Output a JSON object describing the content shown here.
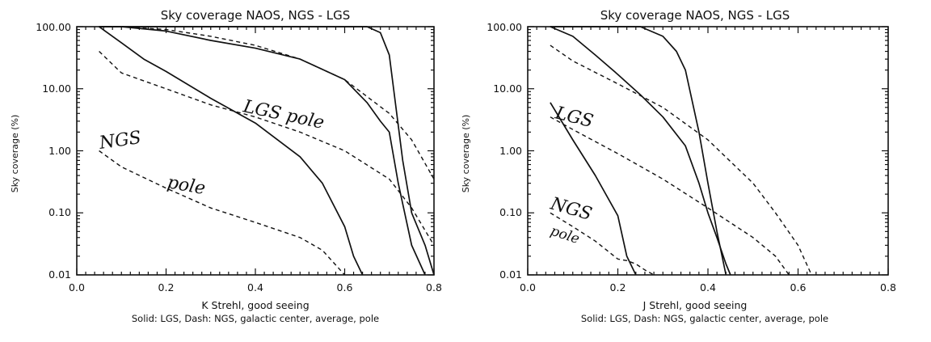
{
  "chart_data": [
    {
      "type": "line",
      "title": "Sky coverage NAOS, NGS - LGS",
      "xlabel": "K Strehl, good seeing",
      "ylabel": "Sky coverage (%)",
      "caption": "Solid: LGS, Dash: NGS, galactic center, average, pole",
      "xlim": [
        0.0,
        0.8
      ],
      "ylim": [
        0.01,
        100
      ],
      "yscale": "log",
      "xticks": [
        "0.0",
        "0.2",
        "0.4",
        "0.6",
        "0.8"
      ],
      "yticks": [
        "0.01",
        "0.10",
        "1.00",
        "10.00",
        "100.00"
      ],
      "annotations": [
        {
          "text": "LGS pole",
          "x": 0.38,
          "y": 2.0
        },
        {
          "text": "NGS",
          "x": 0.05,
          "y": 1.2
        },
        {
          "text": "pole",
          "x": 0.2,
          "y": 0.18
        }
      ],
      "series": [
        {
          "name": "LGS galactic center",
          "style": "solid",
          "x": [
            0.05,
            0.2,
            0.3,
            0.4,
            0.5,
            0.6,
            0.65,
            0.68,
            0.7,
            0.73,
            0.75,
            0.78,
            0.8
          ],
          "y": [
            100,
            100,
            100,
            100,
            100,
            100,
            100,
            80,
            35,
            0.7,
            0.1,
            0.03,
            0.01
          ]
        },
        {
          "name": "LGS average",
          "style": "solid",
          "x": [
            0.05,
            0.1,
            0.2,
            0.3,
            0.4,
            0.5,
            0.6,
            0.65,
            0.68,
            0.7,
            0.72,
            0.75,
            0.78
          ],
          "y": [
            100,
            100,
            85,
            60,
            45,
            30,
            14,
            6,
            3,
            2,
            0.3,
            0.03,
            0.01
          ]
        },
        {
          "name": "LGS pole",
          "style": "solid",
          "x": [
            0.05,
            0.1,
            0.15,
            0.2,
            0.3,
            0.4,
            0.5,
            0.55,
            0.6,
            0.62,
            0.64
          ],
          "y": [
            100,
            55,
            30,
            19,
            7,
            2.8,
            0.8,
            0.3,
            0.06,
            0.02,
            0.01
          ]
        },
        {
          "name": "NGS galactic center",
          "style": "dash",
          "x": [
            0.05,
            0.1,
            0.2,
            0.3,
            0.4,
            0.5,
            0.6,
            0.7,
            0.75,
            0.8
          ],
          "y": [
            100,
            100,
            90,
            70,
            50,
            30,
            14,
            4,
            1.5,
            0.35
          ]
        },
        {
          "name": "NGS average",
          "style": "dash",
          "x": [
            0.05,
            0.1,
            0.2,
            0.3,
            0.4,
            0.5,
            0.6,
            0.7,
            0.75,
            0.8
          ],
          "y": [
            40,
            18,
            10,
            5.5,
            3.5,
            2,
            1,
            0.35,
            0.12,
            0.03
          ]
        },
        {
          "name": "NGS pole",
          "style": "dash",
          "x": [
            0.05,
            0.1,
            0.2,
            0.3,
            0.4,
            0.5,
            0.55,
            0.6
          ],
          "y": [
            1.0,
            0.55,
            0.25,
            0.12,
            0.07,
            0.04,
            0.025,
            0.01
          ]
        }
      ]
    },
    {
      "type": "line",
      "title": "Sky coverage NAOS, NGS - LGS",
      "xlabel": "J Strehl, good seeing",
      "ylabel": "Sky coverage (%)",
      "caption": "Solid: LGS, Dash: NGS, galactic center, average, pole",
      "xlim": [
        0.0,
        0.8
      ],
      "ylim": [
        0.01,
        100
      ],
      "yscale": "log",
      "xticks": [
        "0.0",
        "0.2",
        "0.4",
        "0.6",
        "0.8"
      ],
      "yticks": [
        "0.01",
        "0.10",
        "1.00",
        "10.00",
        "100.00"
      ],
      "annotations": [
        {
          "text": "LGS",
          "x": 0.05,
          "y": 4
        },
        {
          "text": "NGS",
          "x": 0.05,
          "y": 0.08
        },
        {
          "text": "pole",
          "x": 0.05,
          "y": 0.03
        }
      ],
      "series": [
        {
          "name": "LGS galactic center",
          "style": "solid",
          "x": [
            0.05,
            0.15,
            0.2,
            0.25,
            0.3,
            0.33,
            0.35,
            0.38,
            0.4,
            0.42,
            0.44
          ],
          "y": [
            100,
            100,
            100,
            100,
            70,
            40,
            20,
            2,
            0.3,
            0.05,
            0.01
          ]
        },
        {
          "name": "LGS average",
          "style": "solid",
          "x": [
            0.05,
            0.1,
            0.15,
            0.2,
            0.25,
            0.3,
            0.35,
            0.38,
            0.4,
            0.42,
            0.44,
            0.45
          ],
          "y": [
            100,
            70,
            35,
            17,
            8,
            3.5,
            1.2,
            0.3,
            0.1,
            0.04,
            0.015,
            0.01
          ]
        },
        {
          "name": "LGS pole",
          "style": "solid",
          "x": [
            0.05,
            0.1,
            0.15,
            0.2,
            0.22,
            0.24
          ],
          "y": [
            6,
            1.5,
            0.4,
            0.09,
            0.02,
            0.01
          ]
        },
        {
          "name": "NGS galactic center",
          "style": "dash",
          "x": [
            0.05,
            0.1,
            0.2,
            0.3,
            0.4,
            0.5,
            0.55,
            0.6,
            0.63
          ],
          "y": [
            50,
            28,
            12,
            5,
            1.5,
            0.3,
            0.1,
            0.03,
            0.01
          ]
        },
        {
          "name": "NGS average",
          "style": "dash",
          "x": [
            0.05,
            0.1,
            0.2,
            0.3,
            0.4,
            0.5,
            0.55,
            0.58
          ],
          "y": [
            3.5,
            2.2,
            0.9,
            0.35,
            0.12,
            0.04,
            0.02,
            0.01
          ]
        },
        {
          "name": "NGS pole",
          "style": "dash",
          "x": [
            0.05,
            0.1,
            0.15,
            0.2,
            0.22,
            0.24,
            0.26,
            0.28
          ],
          "y": [
            0.1,
            0.06,
            0.035,
            0.018,
            0.017,
            0.015,
            0.012,
            0.01
          ]
        }
      ]
    }
  ]
}
